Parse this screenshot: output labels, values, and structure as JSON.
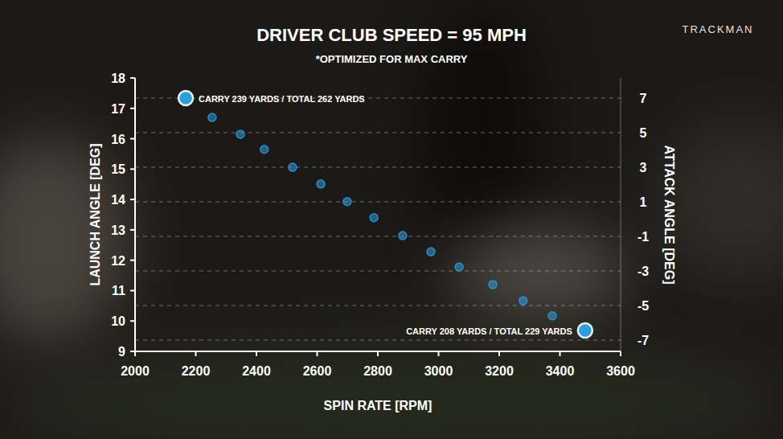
{
  "chart_data": {
    "type": "scatter",
    "title": "DRIVER CLUB SPEED = 95 MPH",
    "subtitle": "*OPTIMIZED FOR MAX CARRY",
    "brand": "TRACKMAN",
    "x_label": "SPIN RATE [RPM]",
    "y_label": "LAUNCH ANGLE [DEG]",
    "y2_label": "ATTACK ANGLE [DEG]",
    "x": [
      2167,
      2254,
      2347,
      2426,
      2519,
      2612,
      2699,
      2787,
      2882,
      2975,
      3068,
      3179,
      3279,
      3375,
      3483
    ],
    "values": [
      17.34,
      16.7,
      16.15,
      15.65,
      15.06,
      14.51,
      13.93,
      13.4,
      12.81,
      12.28,
      11.78,
      11.2,
      10.67,
      10.17,
      9.69
    ],
    "color": "#2a9fe0",
    "marker": "circle",
    "xlim": [
      2000,
      3600
    ],
    "xticks": [
      2000,
      2200,
      2400,
      2600,
      2800,
      3000,
      3200,
      3400,
      3600
    ],
    "ylim": [
      9,
      18
    ],
    "yticks": [
      9,
      10,
      11,
      12,
      13,
      14,
      15,
      16,
      17,
      18
    ],
    "y2lim": [
      -7.65,
      8.16
    ],
    "y2ticks": [
      -7,
      -5,
      -3,
      -1,
      1,
      3,
      5,
      7
    ],
    "grid": true,
    "annotations": [
      {
        "text": "CARRY 239 YARDS / TOTAL 262 YARDS",
        "point": 0
      },
      {
        "text": "CARRY 208 YARDS / TOTAL 229 YARDS",
        "point": 14
      }
    ]
  }
}
